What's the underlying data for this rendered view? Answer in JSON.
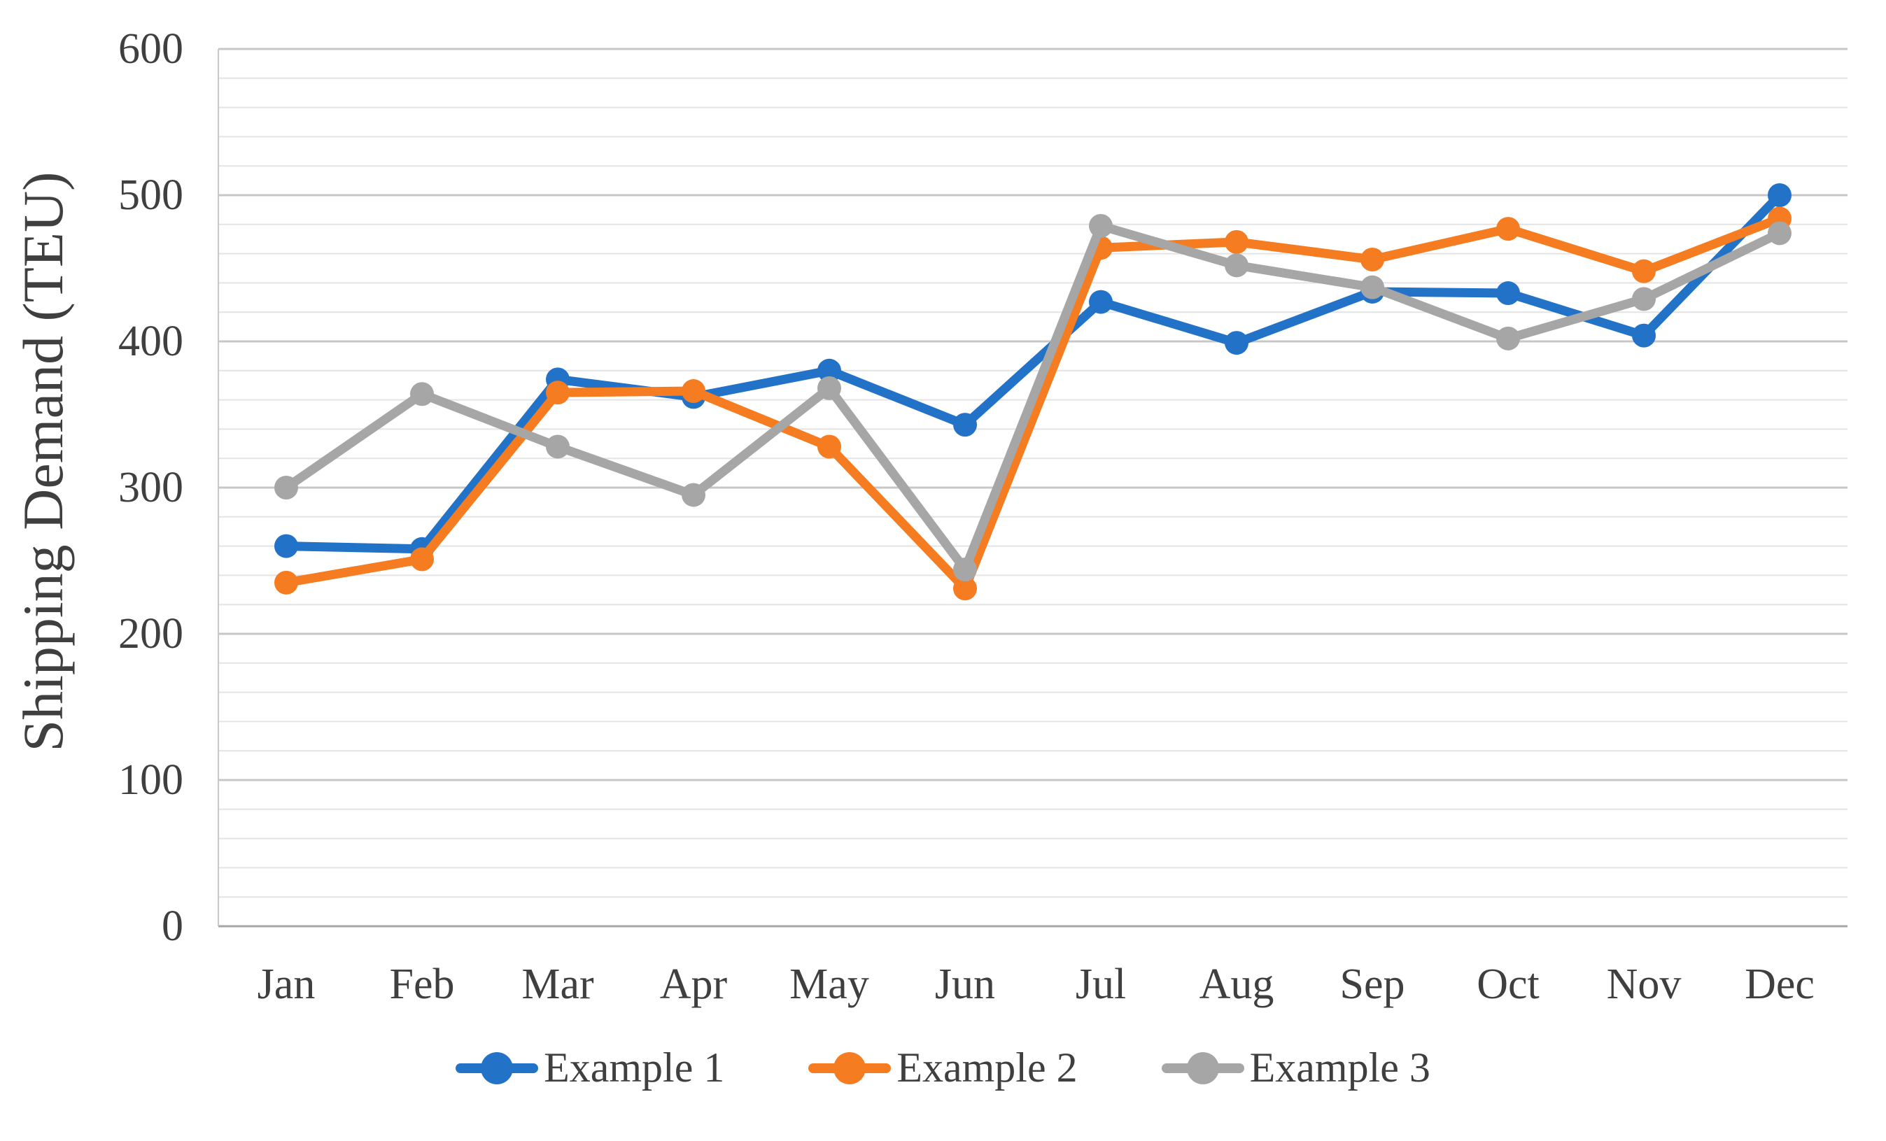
{
  "chart_data": {
    "type": "line",
    "title": "",
    "xlabel": "",
    "ylabel": "Shipping Demand (TEU)",
    "ylim": [
      0,
      600
    ],
    "y_major_tick_step": 100,
    "y_minor_grid_step": 20,
    "y_tick_labels": [
      "0",
      "100",
      "200",
      "300",
      "400",
      "500",
      "600"
    ],
    "grid": "horizontal major and minor gridlines on, vertical off",
    "legend_position": "bottom-center",
    "marker_style": "filled circle on line",
    "categories": [
      "Jan",
      "Feb",
      "Mar",
      "Apr",
      "May",
      "Jun",
      "Jul",
      "Aug",
      "Sep",
      "Oct",
      "Nov",
      "Dec"
    ],
    "series": [
      {
        "name": "Example 1",
        "color": "#2272c8",
        "values": [
          260,
          258,
          374,
          362,
          380,
          343,
          427,
          399,
          434,
          433,
          404,
          500
        ]
      },
      {
        "name": "Example 2",
        "color": "#f57c20",
        "values": [
          235,
          251,
          365,
          366,
          328,
          231,
          464,
          468,
          456,
          477,
          448,
          484
        ]
      },
      {
        "name": "Example 3",
        "color": "#a6a6a6",
        "values": [
          300,
          364,
          328,
          295,
          368,
          244,
          479,
          452,
          437,
          402,
          429,
          474
        ]
      }
    ]
  },
  "colors": {
    "text": "#3f3f3f",
    "minor_gridline": "#e4e4e4",
    "major_gridline": "#c7c7c7",
    "axis_line": "#a6a6a6"
  }
}
